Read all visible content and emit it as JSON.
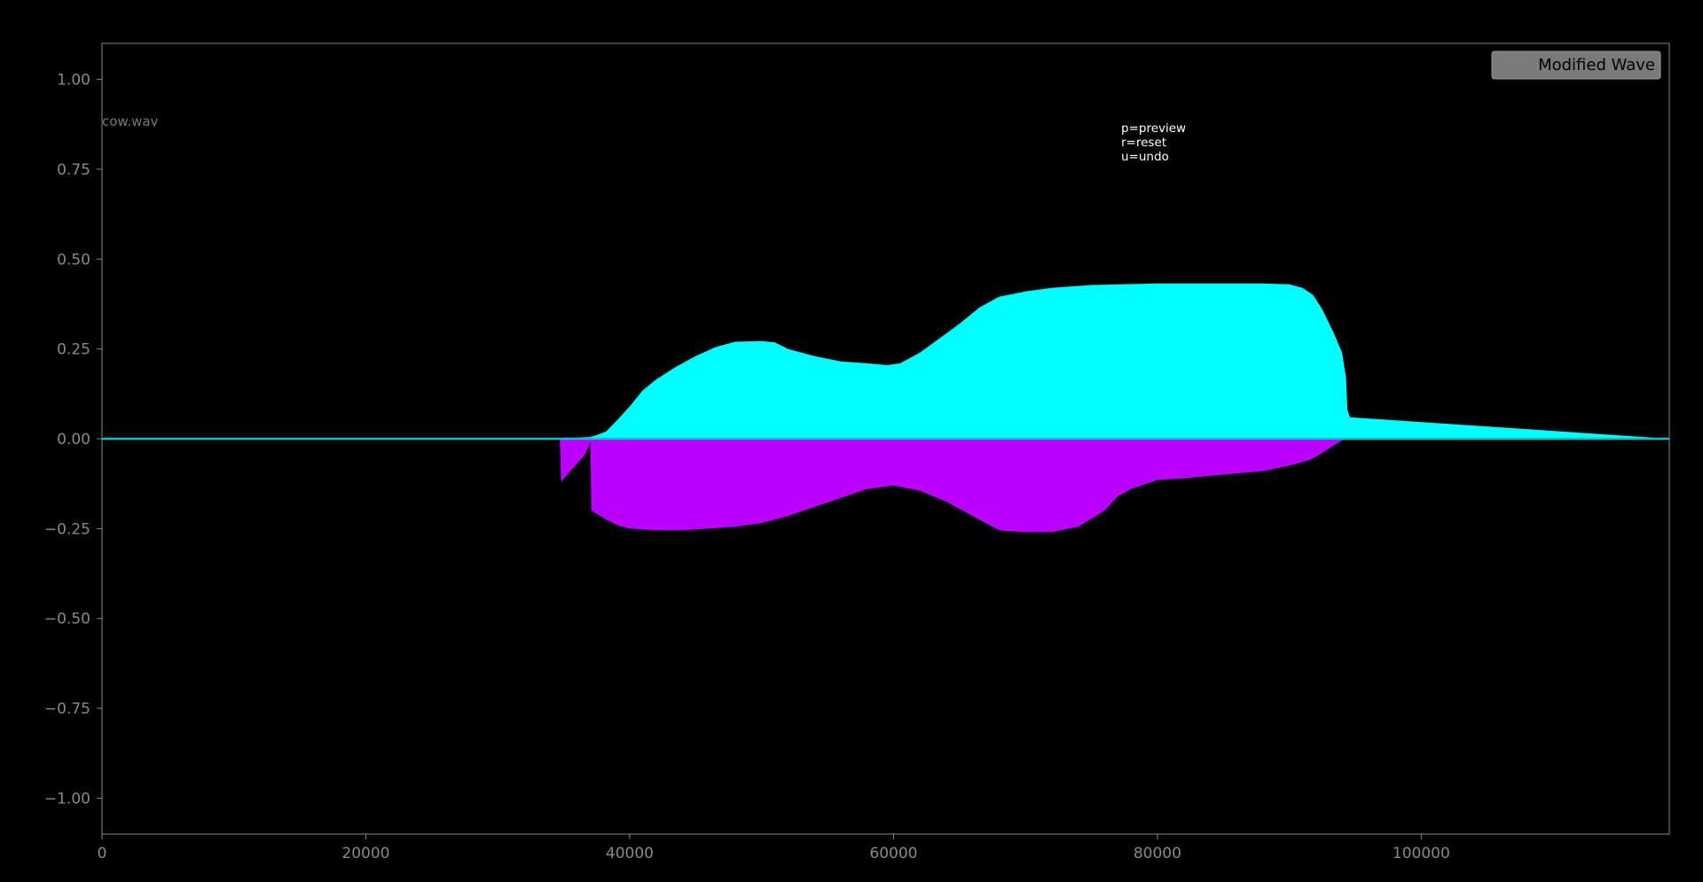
{
  "window": {
    "file_label": "cow.wav",
    "help_lines": [
      "p=preview",
      "r=reset",
      "u=undo"
    ]
  },
  "chart_data": {
    "type": "area",
    "title": "",
    "xlabel": "",
    "ylabel": "",
    "xlim": [
      0,
      118800
    ],
    "ylim": [
      -1.1,
      1.1
    ],
    "grid": false,
    "legend_position": "top-right",
    "x_ticks": [
      0,
      20000,
      40000,
      60000,
      80000,
      100000
    ],
    "x_tick_labels": [
      "0",
      "20000",
      "40000",
      "60000",
      "80000",
      "100000"
    ],
    "y_ticks": [
      1.0,
      0.75,
      0.5,
      0.25,
      0.0,
      -0.25,
      -0.5,
      -0.75,
      -1.0
    ],
    "y_tick_labels": [
      "1.00",
      "0.75",
      "0.50",
      "0.25",
      "0.00",
      "−0.25",
      "−0.50",
      "−0.75",
      "−1.00"
    ],
    "series": [
      {
        "name": "Modified Wave",
        "color": "#888888",
        "positive_envelope": {
          "color": "#00ffff",
          "x": [
            0,
            34700,
            35000,
            36000,
            37000,
            37500,
            38200,
            39000,
            40000,
            41000,
            42000,
            43500,
            45000,
            46500,
            48000,
            50000,
            51000,
            52000,
            54000,
            56000,
            58000,
            59500,
            60500,
            62000,
            63500,
            65000,
            66500,
            68000,
            70000,
            72000,
            75000,
            80000,
            85000,
            88000,
            90000,
            91000,
            91800,
            92500,
            93300,
            94000,
            94300,
            94400,
            94600,
            118800
          ],
          "y": [
            0,
            0,
            0.003,
            0.003,
            0.005,
            0.01,
            0.02,
            0.05,
            0.09,
            0.135,
            0.165,
            0.2,
            0.23,
            0.255,
            0.27,
            0.272,
            0.268,
            0.25,
            0.23,
            0.215,
            0.21,
            0.205,
            0.21,
            0.24,
            0.28,
            0.32,
            0.365,
            0.395,
            0.41,
            0.42,
            0.428,
            0.432,
            0.432,
            0.432,
            0.43,
            0.42,
            0.4,
            0.36,
            0.3,
            0.24,
            0.17,
            0.08,
            0.06,
            0
          ]
        },
        "negative_envelope": {
          "color": "#bb00ff",
          "x": [
            0,
            34700,
            34800,
            35500,
            36000,
            36500,
            36800,
            37000,
            37100,
            38000,
            39000,
            40000,
            42000,
            44000,
            46000,
            48000,
            50000,
            52000,
            54000,
            56000,
            58000,
            60000,
            62000,
            64000,
            66000,
            68000,
            70000,
            72000,
            74000,
            76000,
            77000,
            78000,
            80000,
            82000,
            85000,
            88000,
            90000,
            91500,
            92500,
            93300,
            94000,
            94300,
            94600,
            118800
          ],
          "y": [
            0,
            0,
            -0.12,
            -0.09,
            -0.07,
            -0.05,
            -0.03,
            -0.01,
            -0.2,
            -0.22,
            -0.24,
            -0.25,
            -0.255,
            -0.255,
            -0.25,
            -0.245,
            -0.235,
            -0.215,
            -0.19,
            -0.165,
            -0.14,
            -0.13,
            -0.145,
            -0.175,
            -0.215,
            -0.255,
            -0.26,
            -0.26,
            -0.245,
            -0.2,
            -0.16,
            -0.14,
            -0.115,
            -0.11,
            -0.1,
            -0.09,
            -0.075,
            -0.06,
            -0.04,
            -0.02,
            -0.005,
            -0.001,
            0,
            0
          ]
        },
        "baseline_color": "#00c8c8"
      }
    ]
  },
  "colors": {
    "background": "#000000",
    "axes_frame": "#888888",
    "tick_label": "#888888",
    "file_label": "#777777",
    "help_text": "#ffffff",
    "legend_bg": "#7a7a7a",
    "legend_text": "#000000"
  }
}
